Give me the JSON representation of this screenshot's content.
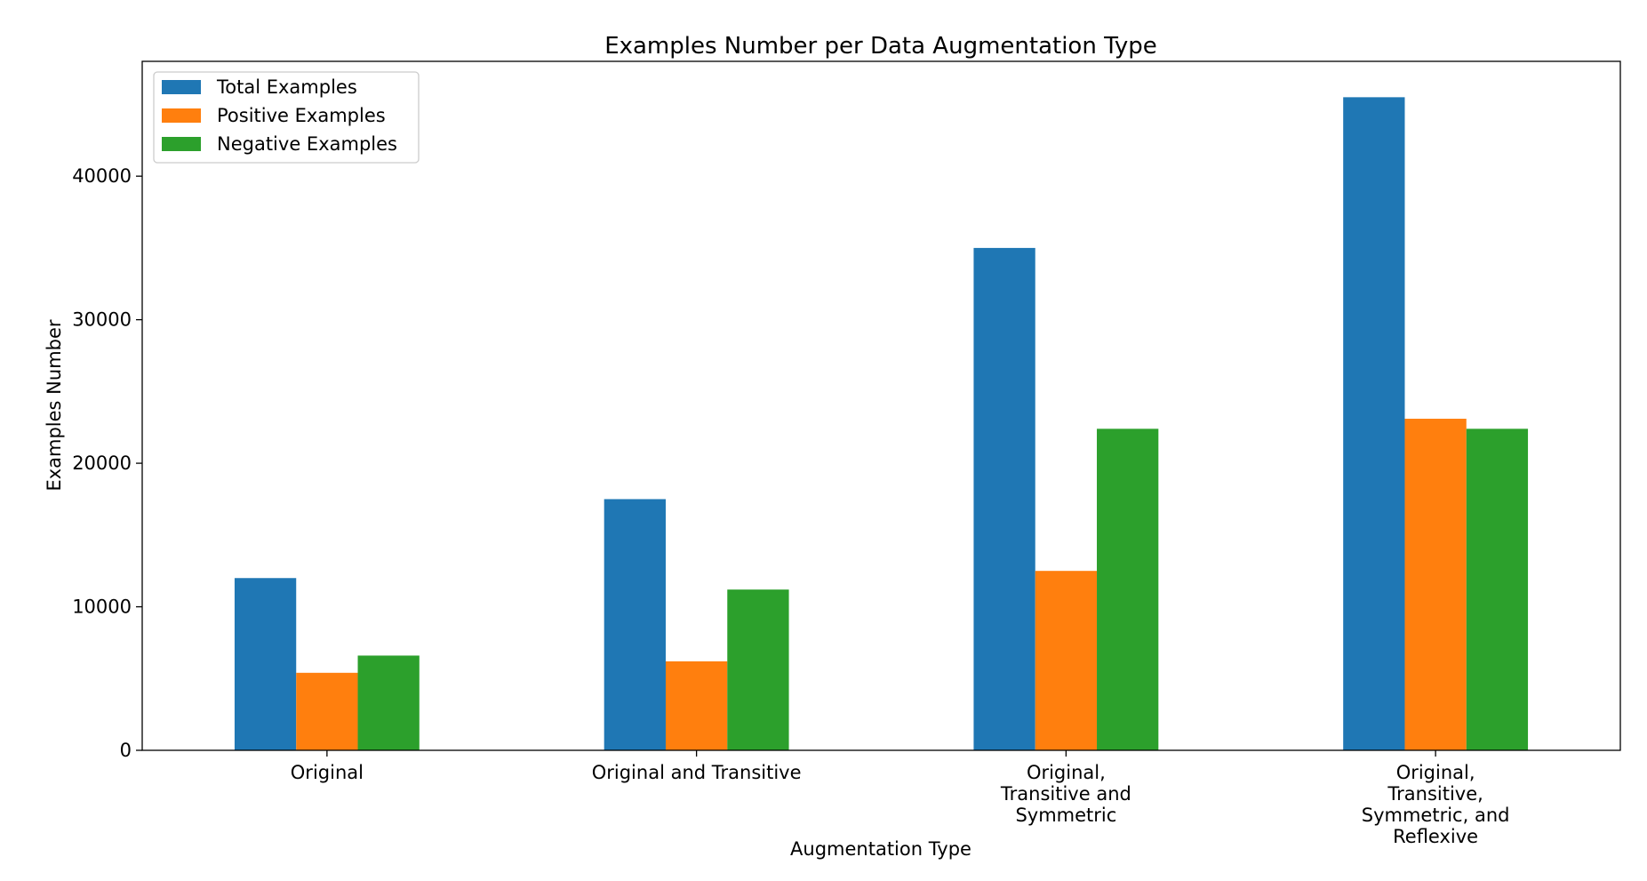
{
  "chart_data": {
    "type": "bar",
    "title": "Examples Number per Data Augmentation Type",
    "xlabel": "Augmentation Type",
    "ylabel": "Examples Number",
    "ylim": [
      0,
      48000
    ],
    "yticks": [
      "0",
      "10000",
      "20000",
      "30000",
      "40000"
    ],
    "ytick_values": [
      0,
      10000,
      20000,
      30000,
      40000
    ],
    "categories": [
      [
        "Original"
      ],
      [
        "Original and Transitive"
      ],
      [
        "Original,",
        "Transitive and",
        "Symmetric"
      ],
      [
        "Original,",
        "Transitive,",
        "Symmetric, and",
        "Reflexive"
      ]
    ],
    "series": [
      {
        "name": "Total Examples",
        "color": "#1f77b4",
        "values": [
          12000,
          17500,
          35000,
          45500
        ]
      },
      {
        "name": "Positive Examples",
        "color": "#ff7f0e",
        "values": [
          5400,
          6200,
          12500,
          23100
        ]
      },
      {
        "name": "Negative Examples",
        "color": "#2ca02c",
        "values": [
          6600,
          11200,
          22400,
          22400
        ]
      }
    ],
    "legend_position": "upper-left",
    "grid": false
  }
}
